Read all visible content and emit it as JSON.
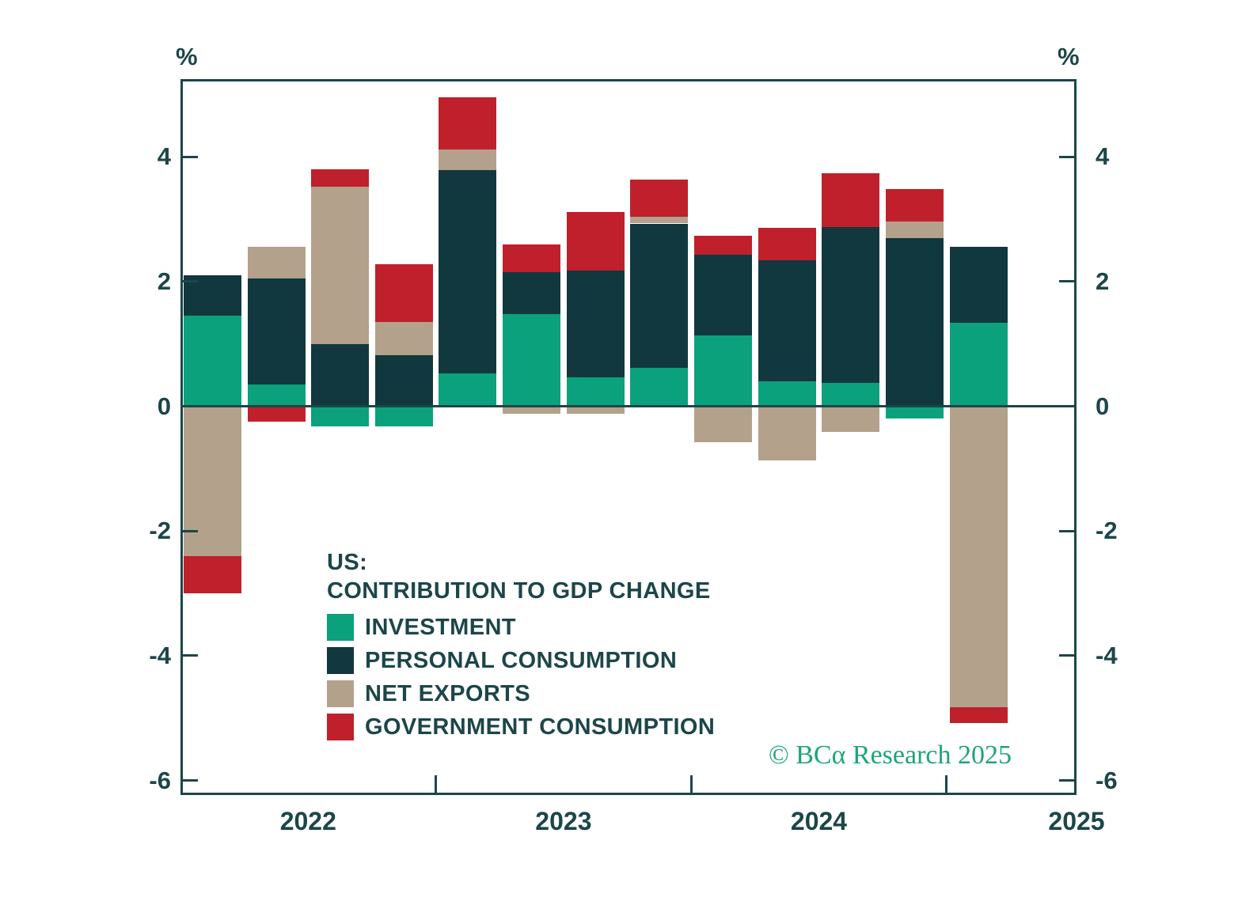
{
  "axes": {
    "percent_left": "%",
    "percent_right": "%",
    "y_ticks": [
      4,
      2,
      0,
      -2,
      -4,
      -6
    ],
    "x_year_labels": [
      "2022",
      "2023",
      "2024",
      "2025"
    ]
  },
  "legend": {
    "title_line1": "US:",
    "title_line2": "CONTRIBUTION TO GDP CHANGE",
    "items": [
      {
        "label": "INVESTMENT",
        "color": "#0aa17c"
      },
      {
        "label": "PERSONAL CONSUMPTION",
        "color": "#11383e"
      },
      {
        "label": "NET EXPORTS",
        "color": "#b3a18c"
      },
      {
        "label": "GOVERNMENT CONSUMPTION",
        "color": "#c0202b"
      }
    ]
  },
  "footer": {
    "copyright": "© BCα Research 2025"
  },
  "chart_data": {
    "type": "bar",
    "stacked": true,
    "title": "US: CONTRIBUTION TO GDP CHANGE",
    "unit": "%",
    "categories": [
      "2022 Q1",
      "2022 Q2",
      "2022 Q3",
      "2022 Q4",
      "2023 Q1",
      "2023 Q2",
      "2023 Q3",
      "2023 Q4",
      "2024 Q1",
      "2024 Q2",
      "2024 Q3",
      "2024 Q4",
      "2025 Q1"
    ],
    "series": [
      {
        "name": "INVESTMENT",
        "color": "#0aa17c",
        "values": [
          1.45,
          0.35,
          -0.32,
          -0.32,
          0.53,
          1.48,
          0.46,
          0.62,
          1.13,
          0.4,
          0.37,
          -0.2,
          1.34
        ]
      },
      {
        "name": "PERSONAL CONSUMPTION",
        "color": "#11383e",
        "values": [
          0.65,
          1.7,
          1.0,
          0.82,
          3.25,
          0.67,
          1.72,
          2.31,
          1.3,
          1.94,
          2.5,
          2.7,
          1.21
        ]
      },
      {
        "name": "NET EXPORTS",
        "color": "#b3a18c",
        "values": [
          -2.4,
          0.5,
          2.52,
          0.53,
          0.34,
          -0.12,
          -0.12,
          0.11,
          -0.58,
          -0.87,
          -0.41,
          0.26,
          -4.82
        ]
      },
      {
        "name": "GOVERNMENT CONSUMPTION",
        "color": "#c0202b",
        "values": [
          -0.6,
          -0.25,
          0.28,
          0.93,
          0.83,
          0.45,
          0.93,
          0.6,
          0.3,
          0.52,
          0.86,
          0.52,
          -0.26
        ]
      }
    ],
    "stack_order_positive": "bottom-to-top: INVESTMENT, PERSONAL CONSUMPTION, NET EXPORTS, GOVERNMENT CONSUMPTION",
    "ylim": [
      -6.25,
      5.25
    ],
    "y_ticks": [
      4,
      2,
      0,
      -2,
      -4,
      -6
    ],
    "x_year_tick_boundaries_after_quarter": [
      4,
      8,
      12
    ],
    "grid": false,
    "legend_position": "inside-bottom-left",
    "axis_color": "#1c4649"
  }
}
